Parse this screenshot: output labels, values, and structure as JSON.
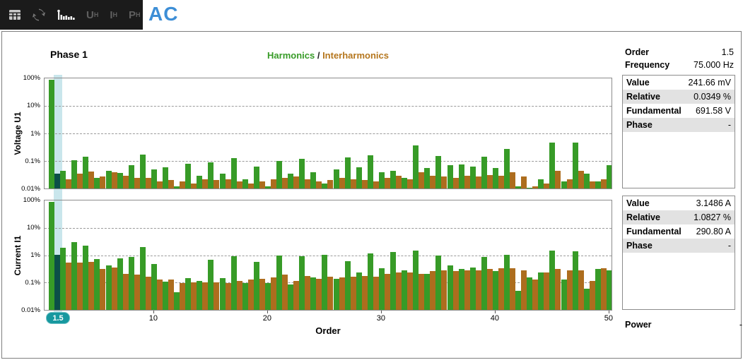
{
  "toolbar": {
    "mode_label": "AC",
    "icons": [
      "table-view-icon",
      "refresh-icon",
      "harmonics-chart-icon"
    ],
    "u_label": "U",
    "i_label": "I",
    "p_label": "P",
    "sub_h": "H"
  },
  "header": {
    "phase_title": "Phase 1",
    "legend_harmonics": "Harmonics",
    "legend_separator": " / ",
    "legend_interharmonics": "Interharmonics"
  },
  "cursor": {
    "order_badge": "1.5"
  },
  "info_panel": {
    "order_label": "Order",
    "order_value": "1.5",
    "frequency_label": "Frequency",
    "frequency_value": "75.000 Hz",
    "voltage_box": {
      "rows": [
        {
          "label": "Value",
          "value": "241.66 mV"
        },
        {
          "label": "Relative",
          "value": "0.0349 %"
        },
        {
          "label": "Fundamental",
          "value": "691.58 V"
        },
        {
          "label": "Phase",
          "value": "-"
        }
      ]
    },
    "current_box": {
      "rows": [
        {
          "label": "Value",
          "value": "3.1486 A"
        },
        {
          "label": "Relative",
          "value": "1.0827 %"
        },
        {
          "label": "Fundamental",
          "value": "290.80 A"
        },
        {
          "label": "Phase",
          "value": "-"
        }
      ]
    },
    "power_label": "Power",
    "power_value": "-"
  },
  "chart_data": [
    {
      "type": "bar",
      "id": "plot-u1",
      "title": "Voltage U1",
      "ylabel": "Voltage U1",
      "xlabel": "Order",
      "yscale": "log",
      "ylim": [
        0.01,
        100
      ],
      "ytick_labels": [
        "100%",
        "10%",
        "1%",
        "0.1%",
        "0.01%"
      ],
      "xticks": [
        10,
        20,
        30,
        40,
        50
      ],
      "orders": "1 to 50 harmonics, 1.5 to 50.5 interharmonics",
      "selected_interharmonic_order": 1.5,
      "series": [
        {
          "name": "Harmonics",
          "color": "#379b27",
          "values": [
            100,
            0.045,
            0.11,
            0.15,
            0.025,
            0.045,
            0.038,
            0.07,
            0.18,
            0.05,
            0.06,
            0.012,
            0.08,
            0.03,
            0.09,
            0.035,
            0.13,
            0.022,
            0.065,
            0.012,
            0.1,
            0.035,
            0.12,
            0.04,
            0.015,
            0.05,
            0.14,
            0.06,
            0.17,
            0.04,
            0.045,
            0.025,
            0.38,
            0.055,
            0.16,
            0.07,
            0.075,
            0.065,
            0.15,
            0.055,
            0.28,
            0.012,
            0.01,
            0.022,
            0.5,
            0.018,
            0.48,
            0.035,
            0.018,
            0.07
          ]
        },
        {
          "name": "Interharmonics",
          "color": "#ad6d1e",
          "values": [
            0.0349,
            0.022,
            0.035,
            0.042,
            0.028,
            0.04,
            0.03,
            0.025,
            0.025,
            0.018,
            0.02,
            0.018,
            0.015,
            0.022,
            0.02,
            0.022,
            0.018,
            0.015,
            0.018,
            0.022,
            0.025,
            0.028,
            0.022,
            0.018,
            0.02,
            0.025,
            0.022,
            0.02,
            0.018,
            0.025,
            0.03,
            0.022,
            0.04,
            0.03,
            0.028,
            0.025,
            0.03,
            0.028,
            0.032,
            0.03,
            0.04,
            0.028,
            0.012,
            0.015,
            0.045,
            0.022,
            0.045,
            0.018,
            0.022,
            0.012
          ]
        }
      ]
    },
    {
      "type": "bar",
      "id": "plot-i1",
      "title": "Current I1",
      "ylabel": "Current I1",
      "xlabel": "Order",
      "yscale": "log",
      "ylim": [
        0.01,
        100
      ],
      "ytick_labels": [
        "100%",
        "10%",
        "1%",
        "0.1%",
        "0.01%"
      ],
      "xticks": [
        10,
        20,
        30,
        40,
        50
      ],
      "orders": "1 to 50 harmonics, 1.5 to 50.5 interharmonics",
      "selected_interharmonic_order": 1.5,
      "series": [
        {
          "name": "Harmonics",
          "color": "#379b27",
          "values": [
            100,
            2.0,
            3.2,
            2.4,
            0.75,
            0.45,
            0.8,
            0.9,
            2.1,
            0.5,
            0.11,
            0.045,
            0.15,
            0.12,
            0.7,
            0.15,
            0.95,
            0.1,
            0.6,
            0.1,
            1.0,
            0.09,
            0.95,
            0.16,
            1.1,
            0.14,
            0.65,
            0.25,
            1.2,
            0.35,
            1.4,
            0.3,
            1.6,
            0.22,
            1.05,
            0.45,
            0.32,
            0.38,
            0.9,
            0.28,
            1.1,
            0.05,
            0.16,
            0.25,
            1.6,
            0.13,
            1.5,
            0.06,
            0.32,
            0.3
          ]
        },
        {
          "name": "Interharmonics",
          "color": "#ad6d1e",
          "values": [
            1.0827,
            0.55,
            0.55,
            0.6,
            0.32,
            0.38,
            0.22,
            0.2,
            0.17,
            0.13,
            0.13,
            0.1,
            0.105,
            0.105,
            0.105,
            0.1,
            0.12,
            0.13,
            0.14,
            0.16,
            0.2,
            0.12,
            0.18,
            0.14,
            0.17,
            0.16,
            0.17,
            0.18,
            0.17,
            0.22,
            0.25,
            0.24,
            0.22,
            0.28,
            0.3,
            0.28,
            0.3,
            0.3,
            0.32,
            0.35,
            0.35,
            0.3,
            0.13,
            0.24,
            0.33,
            0.3,
            0.3,
            0.12,
            0.35,
            0.26
          ]
        }
      ]
    }
  ],
  "colors": {
    "harmonic_green": "#379b27",
    "interharmonic_orange": "#ad6d1e",
    "selected_bar_teal": "#0b4f48",
    "cursor_band_blue": "#b7dde6",
    "badge_teal": "#17989f",
    "mode_blue": "#3d8ed6",
    "toolbar_bg": "#1b1b1b",
    "shade_row": "#e2e2e2"
  }
}
